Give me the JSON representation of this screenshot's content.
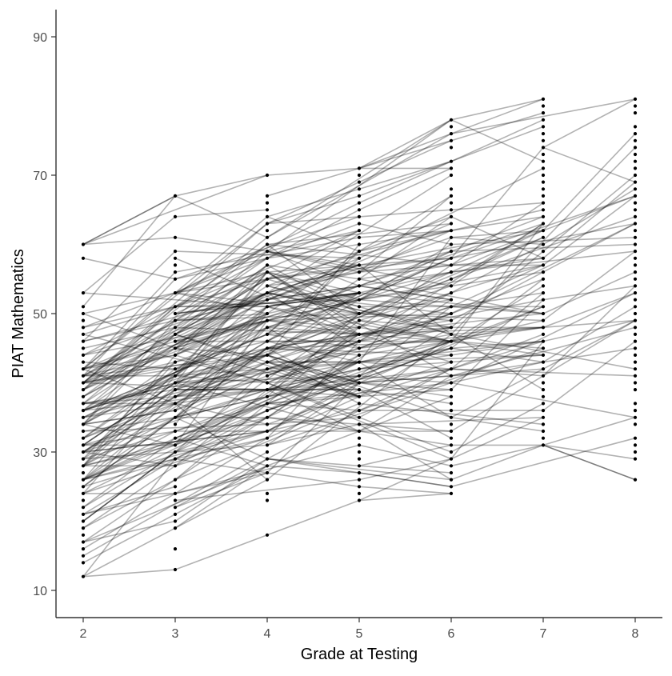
{
  "chart_data": {
    "type": "line",
    "subtype": "spaghetti (individual growth trajectories) with points",
    "title": "",
    "xlabel": "Grade at Testing",
    "ylabel": "PIAT Mathematics",
    "x_ticks": [
      2,
      3,
      4,
      5,
      6,
      7,
      8
    ],
    "y_ticks": [
      10,
      30,
      50,
      70,
      90
    ],
    "xlim": [
      1.7,
      8.3
    ],
    "ylim": [
      6,
      95
    ],
    "grid": false,
    "legend": null,
    "line_color": "#000000",
    "line_alpha": 0.3,
    "point_color": "#000000",
    "approx_n_trajectories": 300,
    "observed_range_by_grade": [
      {
        "grade": 2,
        "min": 12,
        "max": 60
      },
      {
        "grade": 3,
        "min": 13,
        "max": 67
      },
      {
        "grade": 4,
        "min": 18,
        "max": 70
      },
      {
        "grade": 5,
        "min": 23,
        "max": 71
      },
      {
        "grade": 6,
        "min": 24,
        "max": 78
      },
      {
        "grade": 7,
        "min": 31,
        "max": 81
      },
      {
        "grade": 8,
        "min": 26,
        "max": 81
      }
    ],
    "approx_center_by_grade": [
      {
        "grade": 2,
        "mean": 33
      },
      {
        "grade": 3,
        "mean": 41
      },
      {
        "grade": 4,
        "mean": 45
      },
      {
        "grade": 5,
        "mean": 47
      },
      {
        "grade": 6,
        "mean": 50
      },
      {
        "grade": 7,
        "mean": 54
      },
      {
        "grade": 8,
        "mean": 58
      }
    ],
    "notable_points": [
      {
        "grade": 8,
        "value": 35
      },
      {
        "grade": 8,
        "value": 29
      },
      {
        "grade": 8,
        "value": 26
      },
      {
        "grade": 7,
        "value": 31
      }
    ]
  },
  "axes": {
    "x_title": "Grade at Testing",
    "y_title": "PIAT Mathematics",
    "x_tick_labels": [
      "2",
      "3",
      "4",
      "5",
      "6",
      "7",
      "8"
    ],
    "y_tick_labels": [
      "10",
      "30",
      "50",
      "70",
      "90"
    ]
  },
  "colors": {
    "background": "#ffffff",
    "axis": "#333333",
    "tick_text": "#4d4d4d",
    "series": "#000000"
  }
}
